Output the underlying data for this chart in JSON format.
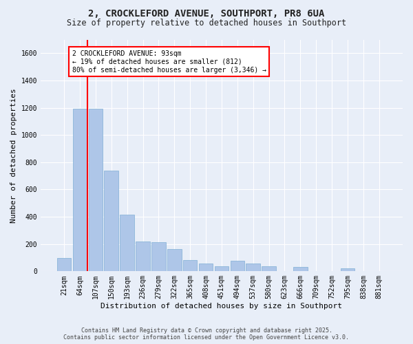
{
  "title_line1": "2, CROCKLEFORD AVENUE, SOUTHPORT, PR8 6UA",
  "title_line2": "Size of property relative to detached houses in Southport",
  "xlabel": "Distribution of detached houses by size in Southport",
  "ylabel": "Number of detached properties",
  "categories": [
    "21sqm",
    "64sqm",
    "107sqm",
    "150sqm",
    "193sqm",
    "236sqm",
    "279sqm",
    "322sqm",
    "365sqm",
    "408sqm",
    "451sqm",
    "494sqm",
    "537sqm",
    "580sqm",
    "623sqm",
    "666sqm",
    "709sqm",
    "752sqm",
    "795sqm",
    "838sqm",
    "881sqm"
  ],
  "values": [
    100,
    1195,
    1195,
    740,
    415,
    220,
    215,
    165,
    80,
    55,
    35,
    75,
    55,
    35,
    0,
    30,
    0,
    0,
    20,
    0,
    0
  ],
  "bar_color": "#aec6e8",
  "bar_edge_color": "#7fafd4",
  "vline_color": "red",
  "vline_x_index": 1.5,
  "annotation_text": "2 CROCKLEFORD AVENUE: 93sqm\n← 19% of detached houses are smaller (812)\n80% of semi-detached houses are larger (3,346) →",
  "annotation_box_color": "white",
  "annotation_box_edge_color": "red",
  "ylim": [
    0,
    1700
  ],
  "yticks": [
    0,
    200,
    400,
    600,
    800,
    1000,
    1200,
    1400,
    1600
  ],
  "footer_line1": "Contains HM Land Registry data © Crown copyright and database right 2025.",
  "footer_line2": "Contains public sector information licensed under the Open Government Licence v3.0.",
  "bg_color": "#e8eef8",
  "plot_bg_color": "#e8eef8",
  "grid_color": "white",
  "font_color": "#222222",
  "title1_fontsize": 10,
  "title2_fontsize": 8.5,
  "xlabel_fontsize": 8,
  "ylabel_fontsize": 8,
  "tick_fontsize": 7,
  "annot_fontsize": 7,
  "footer_fontsize": 6
}
